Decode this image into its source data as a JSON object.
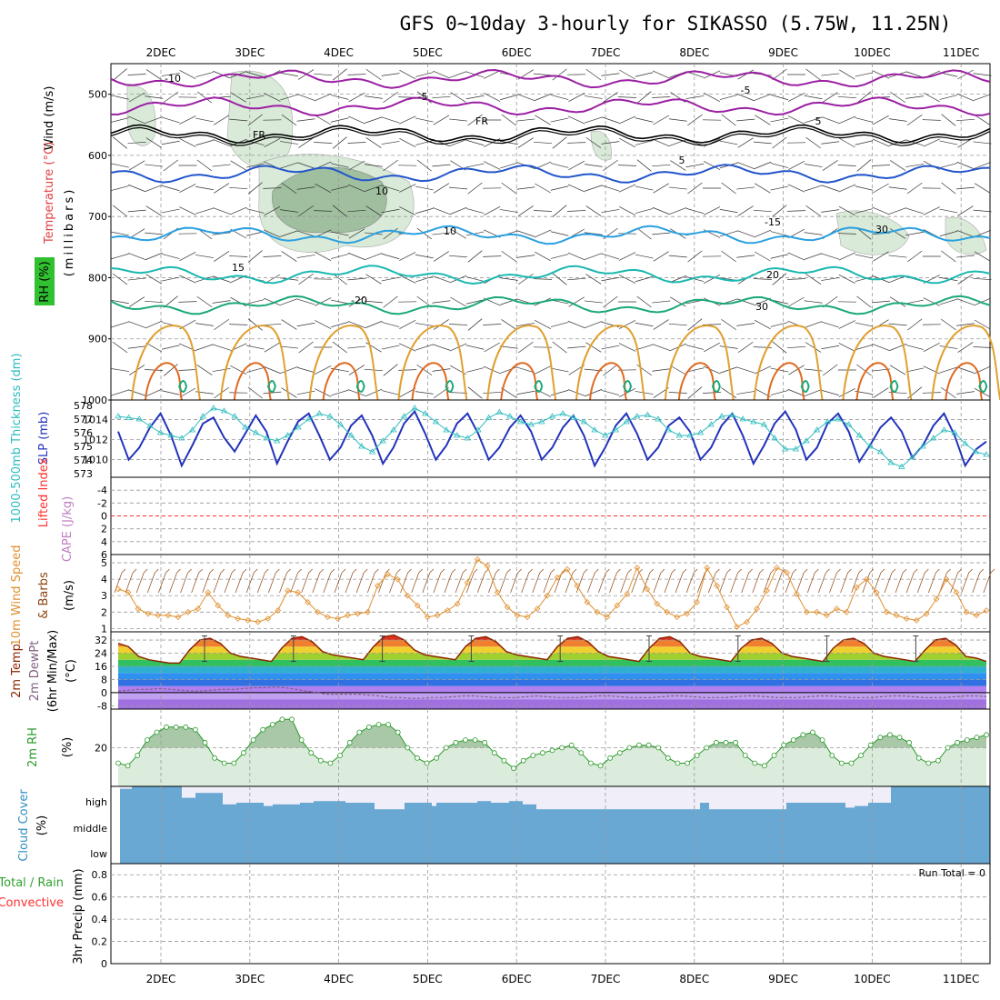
{
  "title": "GFS 0~10day 3-hourly for SIKASSO (5.75W, 11.25N)",
  "dates": [
    "2DEC",
    "3DEC",
    "4DEC",
    "5DEC",
    "6DEC",
    "7DEC",
    "8DEC",
    "9DEC",
    "10DEC",
    "11DEC"
  ],
  "chart_data": [
    {
      "type": "line",
      "panel": "upper-air",
      "ylabel": "(millibars)",
      "axis_titles": [
        "Wind (m/s)",
        "Temperature (°C)",
        "RH (%)"
      ],
      "yticks": [
        500,
        600,
        700,
        800,
        900,
        1000
      ],
      "ylim": [
        1000,
        450
      ],
      "contour_labels": [
        "-10",
        "-5",
        "FR",
        "FR",
        "-5",
        "5",
        "5",
        "10",
        "10",
        "-15",
        "15",
        "20",
        "-20",
        "30",
        "30"
      ],
      "isotherms": [
        {
          "name": "-10",
          "pressure_mb": 475,
          "color": "#9b1fa3"
        },
        {
          "name": "-5",
          "pressure_mb": 520,
          "color": "#9b1fa3"
        },
        {
          "name": "FR",
          "pressure_mb": 565,
          "color": "#000000"
        },
        {
          "name": "5",
          "pressure_mb": 630,
          "color": "#2255cc"
        },
        {
          "name": "10",
          "pressure_mb": 730,
          "color": "#2aa0e0"
        },
        {
          "name": "15",
          "pressure_mb": 795,
          "color": "#1ab8b0"
        },
        {
          "name": "20",
          "pressure_mb": 845,
          "color": "#1aa87a"
        }
      ],
      "colors": {
        "rh_shade_light": "#d9ead9",
        "rh_shade_dark": "#9fbf9f",
        "cape_outline": "#e0a030",
        "cape_inner": "#e06a20"
      }
    },
    {
      "type": "line",
      "panel": "thickness-slp",
      "axis_titles": [
        "1000-500mb Thickness (dm)",
        "SLP (mb)"
      ],
      "yticks_thickness": [
        573,
        574,
        575,
        576,
        577,
        578
      ],
      "yticks_slp": [
        1010,
        1012,
        1014
      ],
      "series": [
        {
          "name": "SLP (mb)",
          "color": "#2233bb",
          "values": [
            1012.8,
            1010,
            1011.2,
            1013.2,
            1014.6,
            1012.4,
            1009.4,
            1011.4,
            1013.6,
            1014.2,
            1012.2,
            1010.8,
            1012.6,
            1014.4,
            1012.8,
            1009.6,
            1011.8,
            1013.8,
            1014.6,
            1012.4,
            1010,
            1011.2,
            1013.4,
            1014.4,
            1012.4,
            1009.6,
            1011.2,
            1013.6,
            1014.8,
            1012.6,
            1010,
            1011.4,
            1013.6,
            1014.6,
            1012.6,
            1010,
            1011.2,
            1013.2,
            1014.4,
            1012.8,
            1010,
            1011.2,
            1013.2,
            1014.4,
            1012.4,
            1009.4,
            1011.2,
            1013.4,
            1014.6,
            1012.6,
            1010,
            1011.2,
            1013.4,
            1014.2,
            1012.8,
            1010,
            1011.2,
            1013.4,
            1014.6,
            1012.4,
            1009.6,
            1011.4,
            1013.6,
            1014.8,
            1013,
            1010,
            1011.2,
            1013.6,
            1014.6,
            1012.8,
            1009.8,
            1011.4,
            1013.2,
            1014.2,
            1012.8,
            1010.2,
            1011.4,
            1013.4,
            1014.6,
            1012.4,
            1009.4,
            1011,
            1011.8
          ]
        },
        {
          "name": "1000-500mb Thickness (dm)",
          "color": "#30bcc0",
          "values": [
            577.2,
            577.1,
            577,
            576.5,
            576,
            575.8,
            575.6,
            576.2,
            577.2,
            577.8,
            577.6,
            577.2,
            576.4,
            576,
            575.6,
            575.4,
            575.8,
            576.4,
            577,
            577.4,
            577.2,
            576.6,
            575.8,
            575,
            574.6,
            575.4,
            576.2,
            577.2,
            577.8,
            577.4,
            576.8,
            576.2,
            575.8,
            575.6,
            576.2,
            577.1,
            577.5,
            577.2,
            576.8,
            576.6,
            576.8,
            577.2,
            577.4,
            577.1,
            576.8,
            576.2,
            575.8,
            576.2,
            576.8,
            577.2,
            577.3,
            577,
            576.2,
            575.8,
            575.8,
            576,
            576.6,
            577.2,
            577.3,
            577,
            576.8,
            576.6,
            575.6,
            574.8,
            574.8,
            575.4,
            576.2,
            576.8,
            577,
            576.6,
            575.8,
            575,
            574.6,
            573.8,
            573.5,
            574.2,
            575,
            575.6,
            576.2,
            576,
            575.2,
            574.6,
            574.4
          ]
        }
      ]
    },
    {
      "type": "line",
      "panel": "stability",
      "axis_titles": [
        "Lifted Index",
        "CAPE (J/kg)"
      ],
      "yticks": [
        -4,
        -2,
        0,
        2,
        4,
        6
      ],
      "ylim": [
        6,
        -6
      ],
      "series": [
        {
          "name": "Lifted Index",
          "color": "#ff3030",
          "values": []
        },
        {
          "name": "CAPE (J/kg)",
          "color": "#c080c0",
          "values": []
        }
      ]
    },
    {
      "type": "line",
      "panel": "10m-wind",
      "axis_titles": [
        "10m Wind Speed",
        "& Barbs",
        "(m/s)"
      ],
      "yticks": [
        1,
        2,
        3,
        4,
        5
      ],
      "ylim": [
        0.8,
        5.5
      ],
      "series": [
        {
          "name": "10m Wind Speed",
          "color": "#e09030",
          "values": [
            3.4,
            3.2,
            2.2,
            1.9,
            1.8,
            1.8,
            1.7,
            2,
            2.2,
            3.2,
            2.4,
            1.8,
            1.6,
            1.5,
            1.4,
            1.6,
            2.1,
            3.3,
            3.2,
            2.6,
            2,
            1.7,
            1.6,
            1.8,
            1.9,
            2,
            3.6,
            4.3,
            4,
            3,
            2.4,
            1.7,
            1.8,
            2.1,
            2.5,
            3.8,
            5.2,
            4.8,
            3.2,
            2.3,
            1.8,
            1.7,
            2.2,
            3,
            4.1,
            4.6,
            3.6,
            2.6,
            2,
            1.7,
            2.4,
            3.1,
            4.7,
            3.4,
            2.5,
            2,
            1.7,
            1.9,
            2.6,
            4.7,
            3.6,
            2.3,
            1.1,
            1.4,
            2.2,
            3.3,
            4.7,
            4.4,
            3.1,
            2,
            2,
            1.8,
            2.2,
            2,
            3.5,
            4,
            3.2,
            2,
            1.8,
            1.6,
            1.5,
            1.9,
            2.8,
            4,
            3.2,
            2,
            1.8,
            2.1
          ]
        }
      ]
    },
    {
      "type": "area",
      "panel": "2m-temp",
      "axis_titles": [
        "2m Temp",
        "2m DewPt",
        "(6hr Min/Max)",
        "(°C)"
      ],
      "yticks": [
        -8,
        0,
        8,
        16,
        24,
        32
      ],
      "ylim": [
        -8,
        36
      ],
      "series": [
        {
          "name": "2m Temp",
          "color": "#8b2500",
          "values": [
            30,
            28,
            22,
            20,
            19,
            18,
            18,
            26,
            32,
            33,
            30,
            24,
            22,
            21,
            20,
            19,
            27,
            33,
            34,
            31,
            25,
            23,
            22,
            21,
            20,
            28,
            34,
            35,
            32,
            26,
            23,
            22,
            21,
            20,
            28,
            33,
            34,
            31,
            25,
            23,
            22,
            21,
            20,
            28,
            33,
            34,
            31,
            25,
            22,
            21,
            20,
            19,
            27,
            33,
            34,
            31,
            24,
            22,
            21,
            20,
            19,
            27,
            32,
            33,
            30,
            24,
            22,
            21,
            20,
            19,
            27,
            32,
            33,
            30,
            24,
            22,
            21,
            20,
            19,
            26,
            32,
            33,
            29,
            22,
            21,
            19
          ]
        },
        {
          "name": "2m DewPt",
          "color": "#806080",
          "values": [
            1,
            1.5,
            2,
            2,
            2.5,
            2,
            1.5,
            1,
            1,
            1.5,
            2,
            2,
            2.5,
            3,
            3,
            3.5,
            3,
            2,
            1,
            0,
            -1,
            -1,
            -1,
            -1,
            -1.5,
            -2,
            -3,
            -3,
            -3.5,
            -3.5,
            -3,
            -3,
            -2.5,
            -2,
            -2,
            -2.5,
            -3,
            -3,
            -3,
            -2.5,
            -2,
            -2.5,
            -3,
            -3,
            -3,
            -2.5,
            -2,
            -2,
            -2.5,
            -3,
            -3,
            -3,
            -2.5,
            -2,
            -2,
            -2.5,
            -3,
            -3,
            -3,
            -2.5,
            -2,
            -2,
            -2.5,
            -3,
            -3,
            -3,
            -2.5,
            -2,
            -2,
            -2.5,
            -3,
            -3,
            -3,
            -2.5,
            -2,
            -2,
            -2.5,
            -3,
            -3,
            -3,
            -2.5,
            -2,
            -2,
            -2.5
          ]
        }
      ]
    },
    {
      "type": "area",
      "panel": "2m-rh",
      "axis_titles": [
        "2m RH",
        "(%)"
      ],
      "yticks": [
        20
      ],
      "series": [
        {
          "name": "2m RH",
          "color": "#2a9a2a",
          "values": [
            14,
            13,
            17,
            23,
            26,
            28,
            28,
            28,
            27,
            22,
            16,
            14,
            14,
            18,
            23,
            27,
            29,
            31,
            31,
            23,
            18,
            15,
            14,
            17,
            22,
            26,
            28,
            29,
            29,
            26,
            20,
            16,
            14,
            16,
            20,
            22,
            23,
            23,
            22,
            18,
            15,
            12,
            15,
            17,
            18,
            19,
            20,
            21,
            18,
            14,
            13,
            16,
            18,
            20,
            21,
            21,
            20,
            16,
            14,
            14,
            17,
            20,
            22,
            22,
            22,
            17,
            14,
            13,
            17,
            21,
            23,
            25,
            26,
            23,
            17,
            14,
            14,
            17,
            21,
            24,
            25,
            24,
            22,
            16,
            14,
            15,
            20,
            22,
            23,
            24,
            25
          ]
        }
      ]
    },
    {
      "type": "area",
      "panel": "cloud-cover",
      "axis_titles": [
        "Cloud Cover",
        "(%)"
      ],
      "yticks": [
        "high",
        "middle",
        "low"
      ],
      "colors": {
        "cloud": "#6aa8d4",
        "gap": "#f0eef8"
      }
    },
    {
      "type": "bar",
      "panel": "precip",
      "axis_titles": [
        "Total / Rain",
        "Convective",
        "3hr Precip (mm)"
      ],
      "yticks": [
        0,
        0.2,
        0.4,
        0.6,
        0.8
      ],
      "ylim": [
        0,
        0.9
      ],
      "annotation": "Run Total = 0",
      "series": [
        {
          "name": "Total / Rain",
          "color": "#30a030",
          "values": []
        },
        {
          "name": "Convective",
          "color": "#ff3030",
          "values": []
        }
      ]
    }
  ]
}
